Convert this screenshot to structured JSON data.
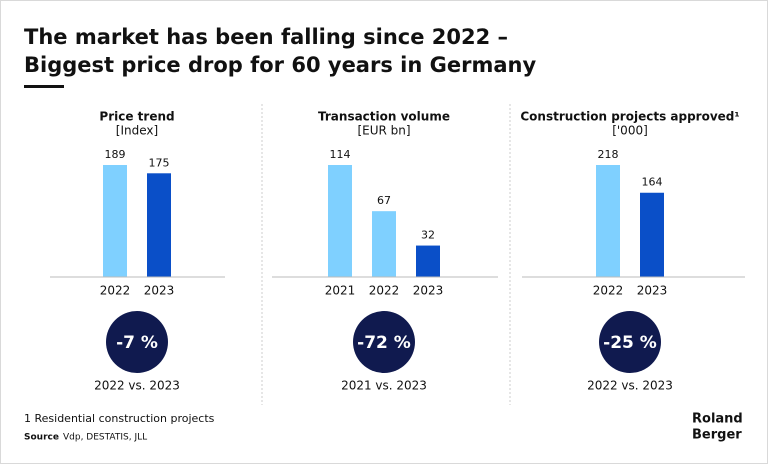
{
  "title_lines": [
    "The market has been falling since 2022 –",
    "Biggest price drop for 60 years in Germany"
  ],
  "footnote": "1 Residential construction projects",
  "source_label": "Source",
  "source": "Vdp, DESTATIS, JLL",
  "logo_lines": [
    "Roland",
    "Berger"
  ],
  "chart_data": [
    {
      "type": "bar",
      "title": "Price trend",
      "subtitle": "[Index]",
      "categories": [
        "2022",
        "2023"
      ],
      "values": [
        189,
        175
      ],
      "colors": [
        "#7fd0ff",
        "#0a4fc8"
      ],
      "change": "-7 %",
      "comparison": "2022 vs. 2023"
    },
    {
      "type": "bar",
      "title": "Transaction volume",
      "subtitle": "[EUR bn]",
      "categories": [
        "2021",
        "2022",
        "2023"
      ],
      "values": [
        114,
        67,
        32
      ],
      "colors": [
        "#7fd0ff",
        "#7fd0ff",
        "#0a4fc8"
      ],
      "change": "-72 %",
      "comparison": "2021 vs. 2023"
    },
    {
      "type": "bar",
      "title": "Construction projects approved¹",
      "subtitle": "['000]",
      "categories": [
        "2022",
        "2023"
      ],
      "values": [
        218,
        164
      ],
      "colors": [
        "#7fd0ff",
        "#0a4fc8"
      ],
      "change": "-25 %",
      "comparison": "2022 vs. 2023"
    }
  ]
}
